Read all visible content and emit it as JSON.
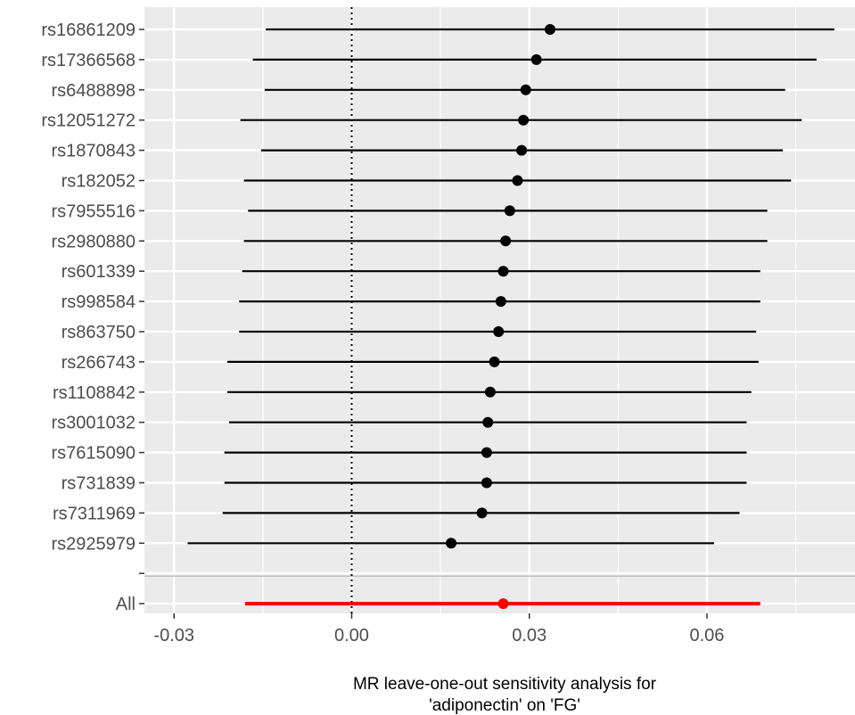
{
  "chart_data": {
    "type": "forest",
    "xlabel": [
      "MR leave-one-out sensitivity analysis for",
      "'adiponectin' on 'FG'"
    ],
    "xlim": [
      -0.035,
      0.085
    ],
    "x_ticks": [
      -0.03,
      0.0,
      0.03,
      0.06
    ],
    "x_tick_labels": [
      "-0.03",
      "0.00",
      "0.03",
      "0.06"
    ],
    "reference_line": 0.0,
    "grid": true,
    "rows": [
      {
        "label": "rs16861209",
        "estimate": 0.0335,
        "lower": -0.0145,
        "upper": 0.0815
      },
      {
        "label": "rs17366568",
        "estimate": 0.0312,
        "lower": -0.0167,
        "upper": 0.0785
      },
      {
        "label": "rs6488898",
        "estimate": 0.0294,
        "lower": -0.0147,
        "upper": 0.0732
      },
      {
        "label": "rs12051272",
        "estimate": 0.029,
        "lower": -0.0188,
        "upper": 0.076
      },
      {
        "label": "rs1870843",
        "estimate": 0.0287,
        "lower": -0.0153,
        "upper": 0.0728
      },
      {
        "label": "rs182052",
        "estimate": 0.028,
        "lower": -0.0182,
        "upper": 0.0742
      },
      {
        "label": "rs7955516",
        "estimate": 0.0267,
        "lower": -0.0175,
        "upper": 0.0702
      },
      {
        "label": "rs2980880",
        "estimate": 0.026,
        "lower": -0.0182,
        "upper": 0.0702
      },
      {
        "label": "rs601339",
        "estimate": 0.0256,
        "lower": -0.0185,
        "upper": 0.069
      },
      {
        "label": "rs998584",
        "estimate": 0.0252,
        "lower": -0.019,
        "upper": 0.069
      },
      {
        "label": "rs863750",
        "estimate": 0.0248,
        "lower": -0.019,
        "upper": 0.0683
      },
      {
        "label": "rs266743",
        "estimate": 0.0241,
        "lower": -0.021,
        "upper": 0.0687
      },
      {
        "label": "rs1108842",
        "estimate": 0.0234,
        "lower": -0.021,
        "upper": 0.0675
      },
      {
        "label": "rs3001032",
        "estimate": 0.023,
        "lower": -0.0207,
        "upper": 0.0667
      },
      {
        "label": "rs7615090",
        "estimate": 0.0228,
        "lower": -0.0215,
        "upper": 0.0667
      },
      {
        "label": "rs731839",
        "estimate": 0.0228,
        "lower": -0.0215,
        "upper": 0.0667
      },
      {
        "label": "rs7311969",
        "estimate": 0.022,
        "lower": -0.0218,
        "upper": 0.0655
      },
      {
        "label": "rs2925979",
        "estimate": 0.0168,
        "lower": -0.0277,
        "upper": 0.0612
      },
      {
        "label": "",
        "estimate": null,
        "lower": null,
        "upper": null
      },
      {
        "label": "All",
        "estimate": 0.0256,
        "lower": -0.018,
        "upper": 0.069,
        "highlight": true
      }
    ],
    "colors": {
      "panel": "#ebebeb",
      "grid": "#ffffff",
      "marks": "#000000",
      "highlight": "#ff0000",
      "separator": "#bebebe",
      "tick_text": "#4d4d4d"
    }
  }
}
